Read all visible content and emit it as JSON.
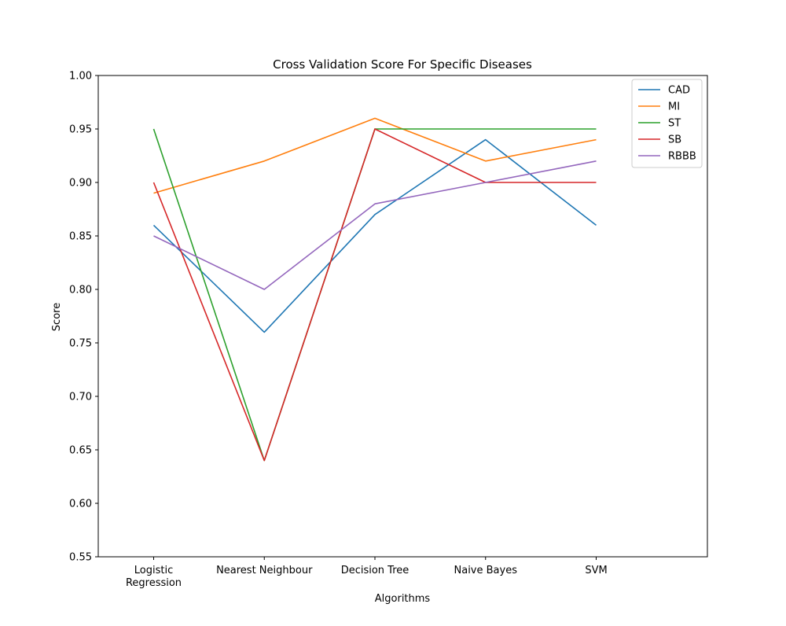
{
  "chart_data": {
    "type": "line",
    "title": "Cross Validation Score For Specific Diseases",
    "xlabel": "Algorithms",
    "ylabel": "Score",
    "categories": [
      [
        "Logistic",
        "Regression"
      ],
      [
        "Nearest Neighbour"
      ],
      [
        "Decision Tree"
      ],
      [
        "Naive Bayes"
      ],
      [
        "SVM"
      ]
    ],
    "ylim": [
      0.55,
      1.0
    ],
    "yticks": [
      "0.55",
      "0.60",
      "0.65",
      "0.70",
      "0.75",
      "0.80",
      "0.85",
      "0.90",
      "0.95",
      "1.00"
    ],
    "legend_position": "top-right",
    "grid": false,
    "series": [
      {
        "name": "CAD",
        "color": "#1f77b4",
        "values": [
          0.86,
          0.76,
          0.87,
          0.94,
          0.86
        ]
      },
      {
        "name": "MI",
        "color": "#ff7f0e",
        "values": [
          0.89,
          0.92,
          0.96,
          0.92,
          0.94
        ]
      },
      {
        "name": "ST",
        "color": "#2ca02c",
        "values": [
          0.95,
          0.64,
          0.95,
          0.95,
          0.95
        ]
      },
      {
        "name": "SB",
        "color": "#d62728",
        "values": [
          0.9,
          0.64,
          0.95,
          0.9,
          0.9
        ]
      },
      {
        "name": "RBBB",
        "color": "#9467bd",
        "values": [
          0.85,
          0.8,
          0.88,
          0.9,
          0.92
        ]
      }
    ]
  }
}
